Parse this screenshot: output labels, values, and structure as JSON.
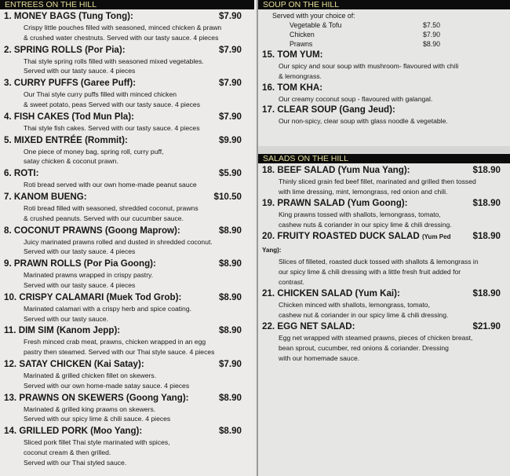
{
  "entrees": {
    "header": "ENTREES ON THE HILL",
    "items": [
      {
        "title": "1. MONEY BAGS (Tung Tong):",
        "price": "$7.90",
        "desc": [
          "Crispy little pouches filled with seasoned, minced chicken & prawn",
          "& crushed water chestnuts. Served with our tasty sauce. 4 pieces"
        ]
      },
      {
        "title": "2. SPRING ROLLS (Por Pia):",
        "price": "$7.90",
        "desc": [
          "Thai style spring rolls filled with seasoned mixed vegetables.",
          "Served with our tasty sauce. 4 pieces"
        ]
      },
      {
        "title": "3. CURRY PUFFS (Garee Puff):",
        "price": "$7.90",
        "desc": [
          "Our Thai style curry puffs filled with minced chicken",
          "& sweet potato, peas Served with our tasty sauce. 4 pieces"
        ]
      },
      {
        "title": "4. FISH CAKES (Tod Mun Pla):",
        "price": "$7.90",
        "desc": [
          "Thai style fish cakes. Served with our tasty sauce. 4 pieces"
        ]
      },
      {
        "title": "5. MIXED ENTRÉE (Rommit):",
        "price": "$9.90",
        "desc": [
          "One piece of money bag, spring roll, curry puff,",
          "satay chicken & coconut prawn."
        ]
      },
      {
        "title": "6. ROTI:",
        "price": "$5.90",
        "desc": [
          "Roti bread served with our own home-made peanut sauce"
        ]
      },
      {
        "title": "7. KANOM BUENG:",
        "price": "$10.50",
        "desc": [
          "Roti bread filled with seasoned, shredded coconut, prawns",
          "& crushed peanuts. Served with our cucumber sauce."
        ]
      },
      {
        "title": "8. COCONUT PRAWNS (Goong Maprow):",
        "price": "$8.90",
        "desc": [
          "Juicy marinated prawns rolled and dusted in shredded coconut.",
          "Served with our tasty sauce. 4 pieces"
        ]
      },
      {
        "title": "9. PRAWN ROLLS (Por Pia Goong):",
        "price": "$8.90",
        "desc": [
          "Marinated prawns wrapped in crispy pastry.",
          "Served with our tasty sauce. 4 pieces"
        ]
      },
      {
        "title": "10. CRISPY CALAMARI (Muek Tod Grob):",
        "price": "$8.90",
        "desc": [
          "Marinated calamari with a crispy herb and spice coating.",
          "Served with our tasty sauce."
        ]
      },
      {
        "title": "11. DIM SIM (Kanom Jepp):",
        "price": "$8.90",
        "desc": [
          "Fresh minced crab meat, prawns, chicken wrapped in an egg",
          "pastry then steamed. Served with our Thai style sauce. 4 pieces"
        ]
      },
      {
        "title": "12. SATAY CHICKEN (Kai Satay):",
        "price": "$7.90",
        "desc": [
          "Marinated & grilled chicken fillet on skewers.",
          "Served with our own home-made satay sauce. 4 pieces"
        ]
      },
      {
        "title": "13. PRAWNS ON SKEWERS (Goong Yang):",
        "price": "$8.90",
        "desc": [
          "Marinated & grilled king prawns on skewers.",
          "Served with our spicy lime & chili sauce. 4 pieces"
        ]
      },
      {
        "title": "14. GRILLED PORK (Moo Yang):",
        "price": "$8.90",
        "desc": [
          "Sliced pork fillet Thai style marinated with spices,",
          "coconut cream & then grilled.",
          "Served with our Thai styled sauce."
        ]
      }
    ]
  },
  "soup": {
    "header": "SOUP ON THE HILL",
    "intro": "Served with your choice of:",
    "choices": [
      {
        "name": "Vegetable & Tofu",
        "price": "$7.50"
      },
      {
        "name": "Chicken",
        "price": "$7.90"
      },
      {
        "name": "Prawns",
        "price": "$8.90"
      }
    ],
    "items": [
      {
        "title": "15. TOM YUM:",
        "price": "",
        "desc": [
          "Our spicy and sour soup with mushroom- flavoured with chili",
          "& lemongrass."
        ]
      },
      {
        "title": "16. TOM KHA:",
        "price": "",
        "desc": [
          "Our creamy coconut soup - flavoured with galangal."
        ]
      },
      {
        "title": "17. CLEAR SOUP (Gang Jeud):",
        "price": "",
        "desc": [
          "Our non-spicy, clear soup with glass noodle & vegetable."
        ]
      }
    ]
  },
  "salads": {
    "header": "SALADS ON THE HILL",
    "items": [
      {
        "title": "18. BEEF SALAD (Yum Nua Yang):",
        "price": "$18.90",
        "desc": [
          "Thinly sliced grain fed beef fillet, marinated and grilled then tossed",
          "with lime dressing, mint, lemongrass, red onion and chili."
        ]
      },
      {
        "title": "19. PRAWN SALAD (Yum Goong):",
        "price": "$18.90",
        "desc": [
          "King prawns tossed with shallots, lemongrass, tomato,",
          "cashew nuts & coriander in our spicy lime & chili dressing."
        ]
      },
      {
        "title": "20. FRUITY ROASTED DUCK SALAD",
        "subtitle": "(Yum Ped Yang):",
        "price": "$18.90",
        "desc": [
          "Slices of filleted, roasted duck tossed with shallots & lemongrass in",
          "our spicy lime & chili dressing with a little fresh fruit added for",
          "contrast."
        ]
      },
      {
        "title": "21. CHICKEN SALAD (Yum Kai):",
        "price": "$18.90",
        "desc": [
          "Chicken minced with shallots, lemongrass, tomato,",
          "cashew nut & coriander in our spicy lime & chili dressing."
        ]
      },
      {
        "title": "22. EGG NET SALAD:",
        "price": "$21.90",
        "desc": [
          "Egg net wrapped with steamed prawns, pieces of chicken breast,",
          "bean sprout, cucumber, red onions & coriander. Dressing",
          "with our homemade sauce."
        ]
      }
    ]
  }
}
